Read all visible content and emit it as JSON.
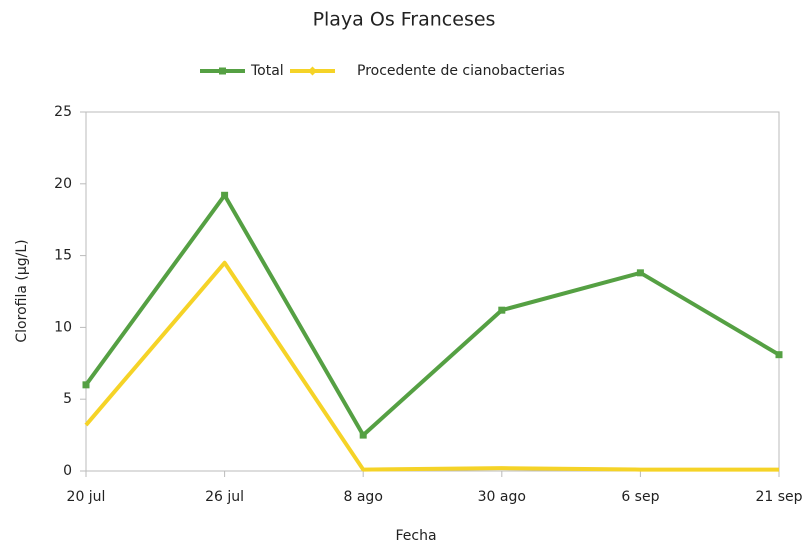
{
  "chart_data": {
    "type": "line",
    "title": "Playa Os Franceses",
    "xlabel": "Fecha",
    "ylabel": "Clorofila (µg/L)",
    "categories": [
      "20 jul",
      "26 jul",
      "8 ago",
      "30 ago",
      "6 sep",
      "21 sep"
    ],
    "series": [
      {
        "name": "Total",
        "color": "#55a043",
        "values": [
          6.0,
          19.2,
          2.5,
          11.2,
          13.8,
          8.1
        ]
      },
      {
        "name": "Procedente de cianobacterias",
        "color": "#f5d327",
        "values": [
          3.2,
          14.5,
          0.1,
          0.2,
          0.1,
          0.1
        ]
      }
    ],
    "ylim": [
      0,
      25
    ],
    "yticks": [
      0,
      5,
      10,
      15,
      20,
      25
    ],
    "legend": "top"
  }
}
